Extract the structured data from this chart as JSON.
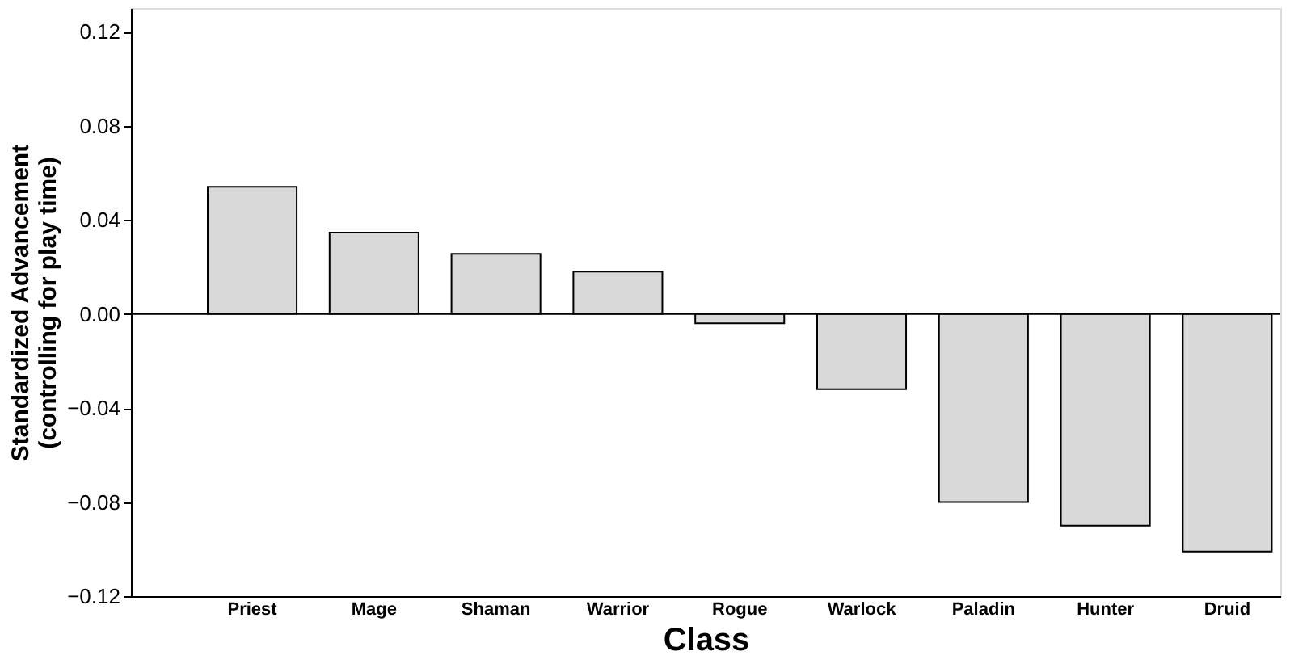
{
  "chart_data": {
    "type": "bar",
    "xlabel": "Class",
    "ylabel": "Standardized Advancement\n(controlling for play time)",
    "categories": [
      "Priest",
      "Mage",
      "Shaman",
      "Warrior",
      "Rogue",
      "Warlock",
      "Paladin",
      "Hunter",
      "Druid"
    ],
    "values": [
      0.054,
      0.0345,
      0.0255,
      0.018,
      -0.004,
      -0.032,
      -0.08,
      -0.09,
      -0.101
    ],
    "color": "#d9d9d9",
    "ylim": [
      -0.12,
      0.13
    ],
    "yticks": [
      {
        "value": -0.12,
        "label": "−0.12"
      },
      {
        "value": -0.08,
        "label": "−0.08"
      },
      {
        "value": -0.04,
        "label": "−0.04"
      },
      {
        "value": 0,
        "label": "0.00"
      },
      {
        "value": 0.04,
        "label": "0.04"
      },
      {
        "value": 0.08,
        "label": "0.08"
      },
      {
        "value": 0.12,
        "label": "0.12"
      }
    ],
    "ref_lines": [
      {
        "axis": "y",
        "value": 0,
        "color": "#000000"
      }
    ],
    "grid": false
  }
}
